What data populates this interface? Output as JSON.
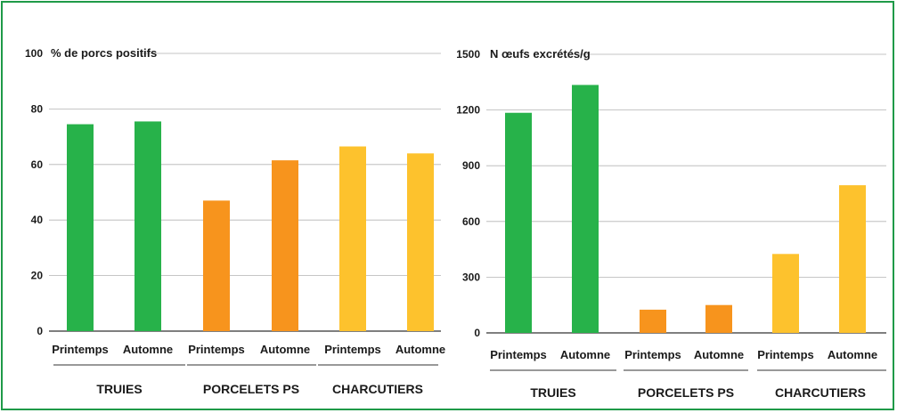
{
  "colors": {
    "border": "#1f9a48",
    "truies": "#27b24a",
    "porcelets": "#f7941d",
    "charcutiers": "#fdc22d",
    "grid": "#b3b3b3",
    "axis": "#333333"
  },
  "chart_data": [
    {
      "type": "bar",
      "title": "% de porcs positifs",
      "ylim": [
        0,
        100
      ],
      "yticks": [
        "0",
        "20",
        "40",
        "60",
        "80",
        "100"
      ],
      "grid": true,
      "groups": [
        "TRUIES",
        "PORCELETS PS",
        "CHARCUTIERS"
      ],
      "categories": [
        "Printemps",
        "Automne",
        "Printemps",
        "Automne",
        "Printemps",
        "Automne"
      ],
      "values": [
        74.5,
        75.5,
        47,
        61.5,
        66.5,
        64
      ]
    },
    {
      "type": "bar",
      "title": "N œufs excrétés/g",
      "ylim": [
        0,
        1500
      ],
      "yticks": [
        "0",
        "300",
        "600",
        "900",
        "1200",
        "1500"
      ],
      "grid": true,
      "groups": [
        "TRUIES",
        "PORCELETS PS",
        "CHARCUTIERS"
      ],
      "categories": [
        "Printemps",
        "Automne",
        "Printemps",
        "Automne",
        "Printemps",
        "Automne"
      ],
      "values": [
        1185,
        1335,
        125,
        150,
        425,
        795
      ]
    }
  ]
}
